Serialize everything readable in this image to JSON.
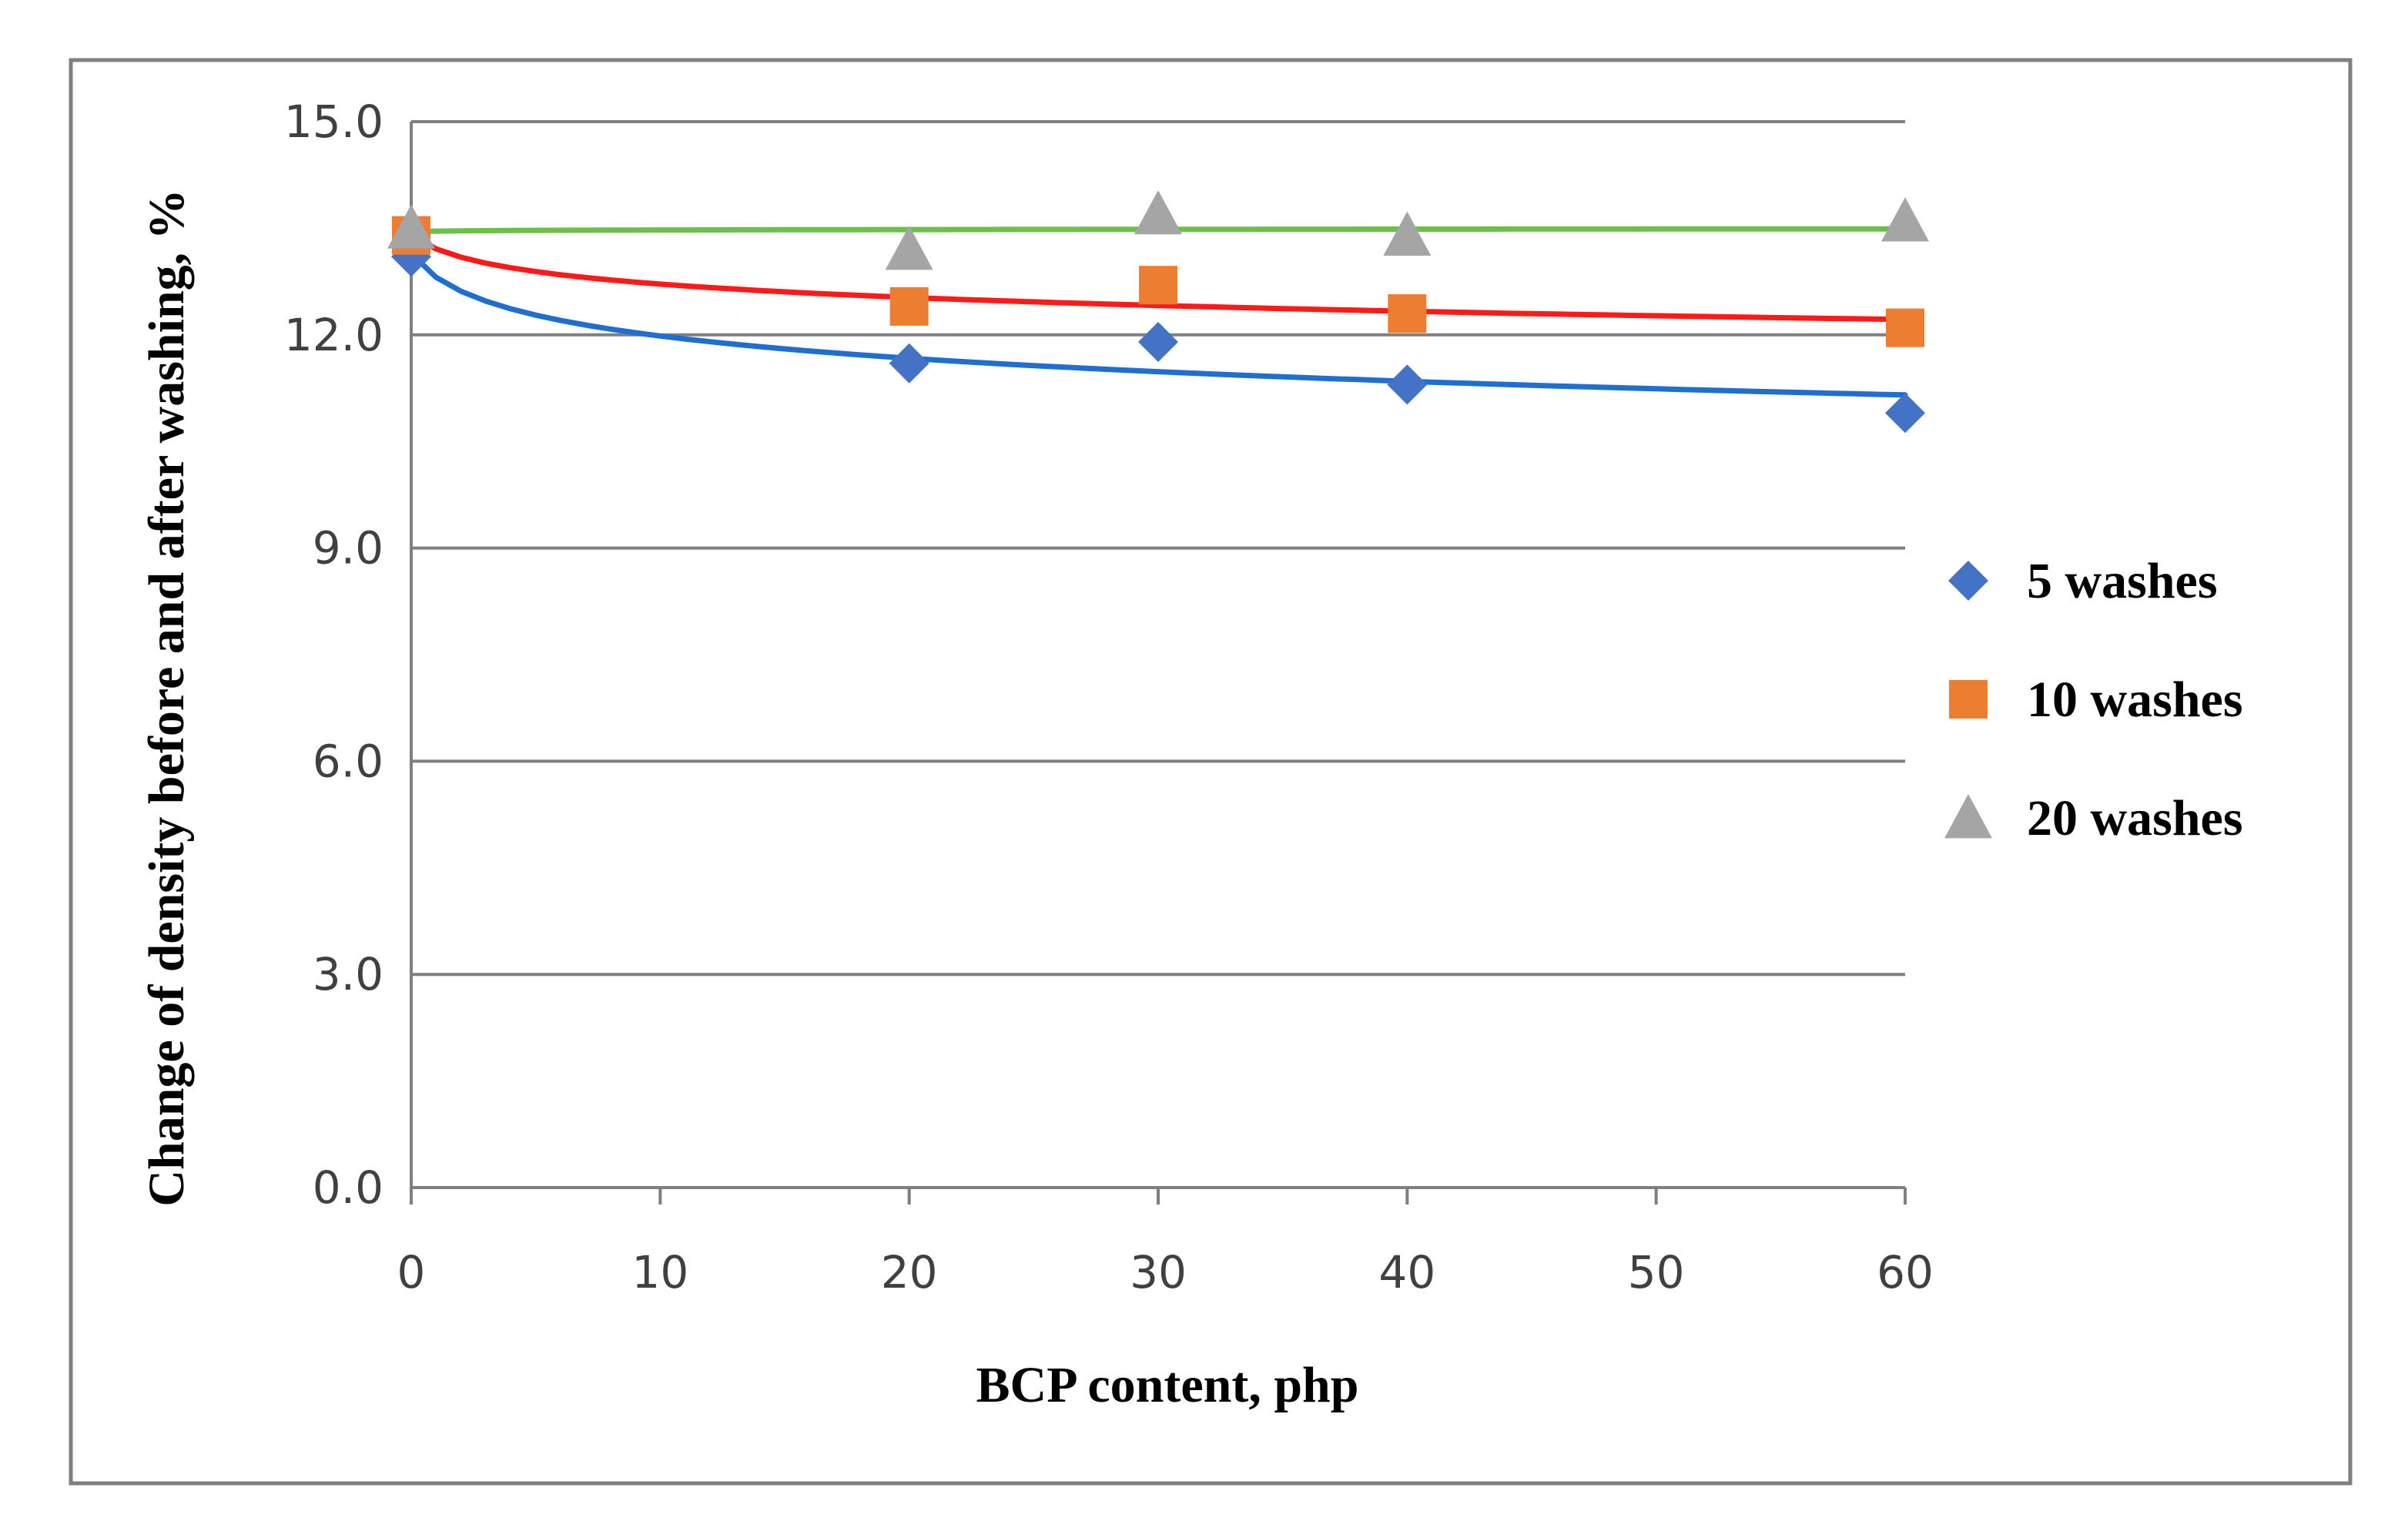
{
  "chart_data": {
    "type": "scatter",
    "xlabel": "BCP content, php",
    "ylabel": "Change of density before and after washing, %",
    "xlim": [
      0,
      60
    ],
    "ylim": [
      0,
      15
    ],
    "xticks": [
      0,
      10,
      20,
      30,
      40,
      50,
      60
    ],
    "yticks": [
      0,
      3,
      6,
      9,
      12,
      15
    ],
    "xtick_labels": [
      "0",
      "10",
      "20",
      "30",
      "40",
      "50",
      "60"
    ],
    "ytick_labels": [
      "0.0",
      "3.0",
      "6.0",
      "9.0",
      "12.0",
      "15.0"
    ],
    "grid": "horizontal",
    "legend_position": "right",
    "series": [
      {
        "name": "5 washes",
        "marker": "diamond",
        "color": "#4472C4",
        "trendline_color": "#1F6FD0",
        "x": [
          0,
          20,
          30,
          40,
          60
        ],
        "y": [
          13.1,
          11.6,
          11.9,
          11.3,
          10.9
        ]
      },
      {
        "name": "10 washes",
        "marker": "square",
        "color": "#ED7D31",
        "trendline_color": "#FF1A1A",
        "x": [
          0,
          20,
          30,
          40,
          60
        ],
        "y": [
          13.4,
          12.4,
          12.7,
          12.3,
          12.1
        ]
      },
      {
        "name": "20 washes",
        "marker": "triangle",
        "color": "#A5A5A5",
        "trendline_color": "#6CC04A",
        "x": [
          0,
          20,
          30,
          40,
          60
        ],
        "y": [
          13.5,
          13.2,
          13.7,
          13.4,
          13.6
        ]
      }
    ]
  }
}
